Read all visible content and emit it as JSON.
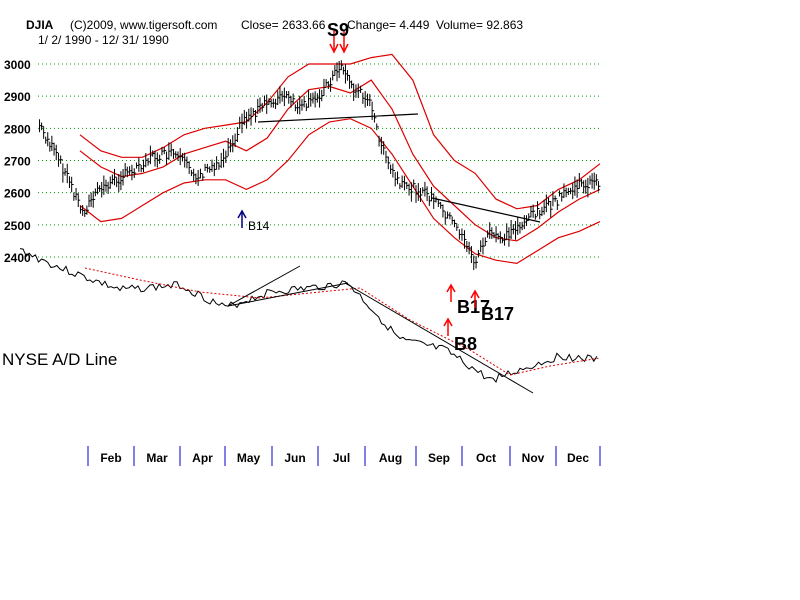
{
  "header": {
    "symbol": "DJIA",
    "copyright": "(C)2009, www.tigersoft.com",
    "close": "Close=   2633.66",
    "change": "Change= 4.449",
    "volume": "Volume= 92.863",
    "date_range": "1/ 2/ 1990 - 12/ 31/ 1990"
  },
  "chart_data": {
    "type": "line",
    "title": "",
    "ylabel": "",
    "xlabel": "",
    "ylim": [
      2330,
      3060
    ],
    "y_ticks": [
      "3000",
      "2900",
      "2800",
      "2700",
      "2600",
      "2500",
      "2400"
    ],
    "months": [
      "Feb",
      "Mar",
      "Apr",
      "May",
      "Jun",
      "Jul",
      "Aug",
      "Sep",
      "Oct",
      "Nov",
      "Dec"
    ],
    "grid": "horizontal dotted",
    "series": [
      {
        "x": [
          "1990-01-02",
          "1990-01-10",
          "1990-01-20",
          "1990-01-30",
          "1990-02-10",
          "1990-02-28",
          "1990-03-15",
          "1990-03-30",
          "1990-04-15",
          "1990-04-30",
          "1990-05-15",
          "1990-05-31",
          "1990-06-10",
          "1990-06-20",
          "1990-06-30",
          "1990-07-10",
          "1990-07-17",
          "1990-07-25",
          "1990-08-03",
          "1990-08-15",
          "1990-08-24",
          "1990-09-05",
          "1990-09-15",
          "1990-09-30",
          "1990-10-05",
          "1990-10-11",
          "1990-10-20",
          "1990-10-31",
          "1990-11-10",
          "1990-11-20",
          "1990-11-30",
          "1990-12-10",
          "1990-12-20",
          "1990-12-31"
        ],
        "values": [
          2810,
          2740,
          2650,
          2540,
          2610,
          2660,
          2710,
          2720,
          2650,
          2700,
          2830,
          2880,
          2900,
          2860,
          2890,
          2950,
          2999,
          2920,
          2900,
          2700,
          2620,
          2610,
          2580,
          2490,
          2460,
          2380,
          2470,
          2460,
          2500,
          2540,
          2560,
          2600,
          2625,
          2633
        ]
      }
    ],
    "bands": {
      "upper": [
        2780,
        2730,
        2710,
        2710,
        2740,
        2780,
        2800,
        2810,
        2820,
        2880,
        2960,
        3000,
        3000,
        3000,
        3020,
        3030,
        2950,
        2780,
        2700,
        2660,
        2580,
        2550,
        2560,
        2610,
        2640,
        2690
      ],
      "middle": [
        2730,
        2680,
        2650,
        2660,
        2680,
        2720,
        2740,
        2760,
        2730,
        2770,
        2860,
        2920,
        2930,
        2910,
        2950,
        2860,
        2720,
        2620,
        2560,
        2500,
        2460,
        2450,
        2490,
        2540,
        2580,
        2610
      ],
      "lower": [
        2560,
        2510,
        2520,
        2560,
        2600,
        2630,
        2640,
        2640,
        2610,
        2640,
        2700,
        2780,
        2820,
        2830,
        2800,
        2720,
        2620,
        2520,
        2460,
        2410,
        2390,
        2380,
        2420,
        2460,
        2480,
        2510
      ]
    },
    "ad_line": {
      "label": "NYSE A/D Line"
    },
    "annotations": [
      {
        "label": "S9",
        "date": "1990-07-17",
        "kind": "sell"
      },
      {
        "label": "B14",
        "date": "1990-04-26",
        "kind": "buy"
      },
      {
        "label": "B17",
        "date": "1990-09-30",
        "kind": "buy"
      },
      {
        "label": "B17",
        "date": "1990-10-10",
        "kind": "buy"
      },
      {
        "label": "B8",
        "date": "1990-09-25",
        "kind": "buy"
      }
    ],
    "colors": {
      "price": "#000000",
      "bands": "#dd0000",
      "grid": "#009900",
      "signal": "#ff0000",
      "b14": "#000080",
      "axis": "#0000cc"
    }
  }
}
